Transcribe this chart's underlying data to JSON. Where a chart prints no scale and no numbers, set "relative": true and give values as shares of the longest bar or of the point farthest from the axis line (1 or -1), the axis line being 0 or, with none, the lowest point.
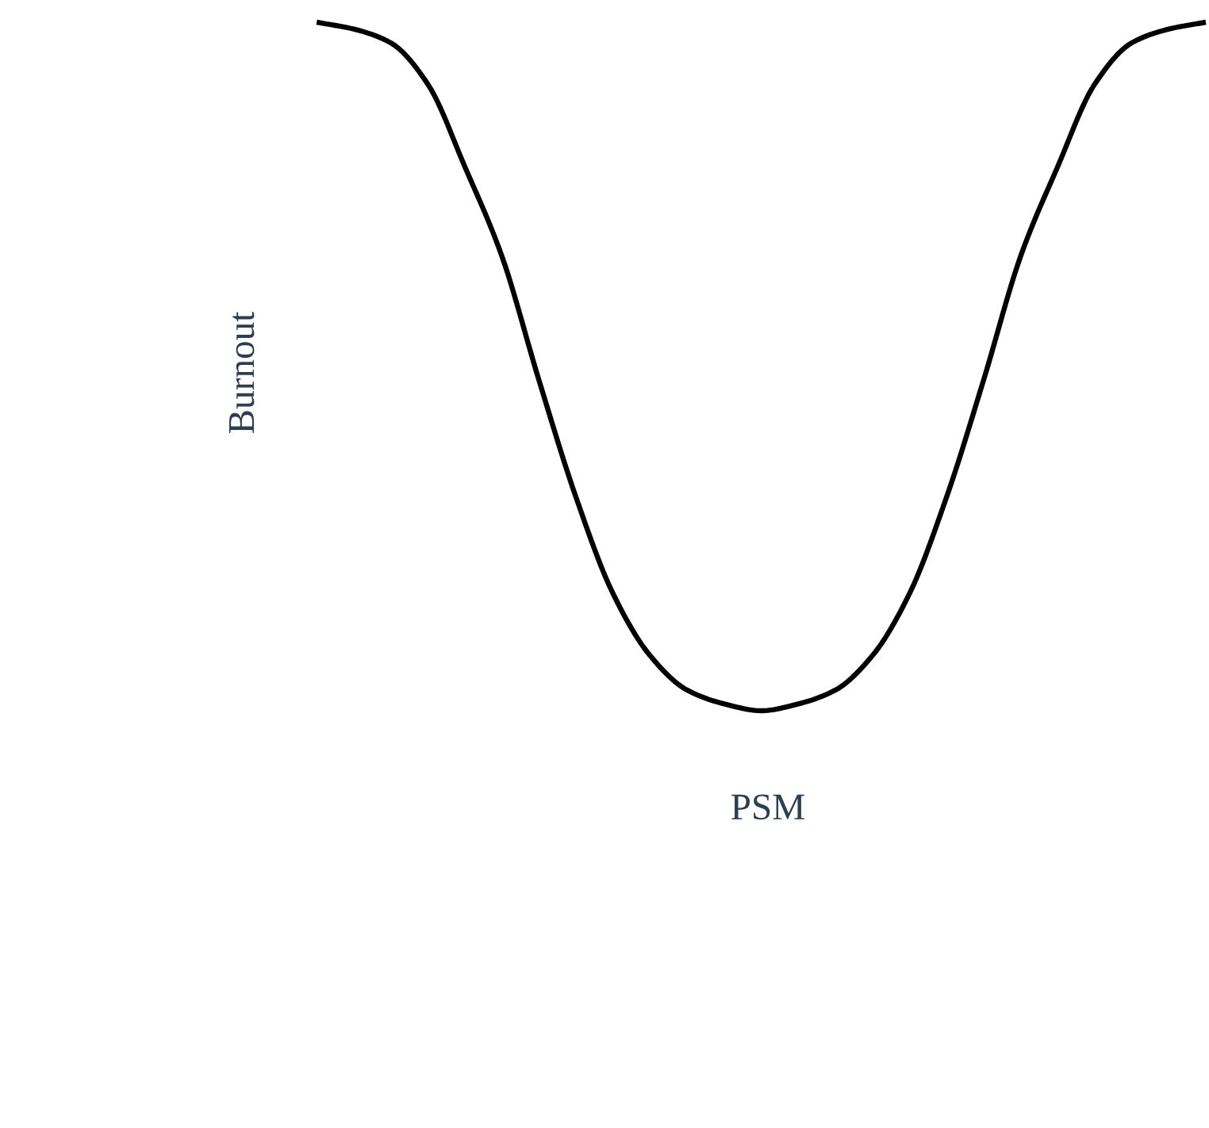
{
  "chart_data": {
    "type": "line",
    "relative": true,
    "xlabel": "PSM",
    "ylabel": "Burnout",
    "categories": [
      null,
      null,
      null,
      null,
      null,
      null,
      null,
      null,
      null,
      null,
      null,
      null,
      null,
      null,
      null,
      null,
      null,
      null,
      null,
      null,
      null,
      null,
      null,
      null,
      null
    ],
    "series": [
      {
        "color": "#000000",
        "values": [
          1,
          0.99,
          0.97,
          0.91,
          0.79,
          0.66,
          0.48,
          0.31,
          0.17,
          0.08,
          0.03,
          0.01,
          0,
          0.01,
          0.03,
          0.08,
          0.17,
          0.31,
          0.48,
          0.66,
          0.79,
          0.91,
          0.97,
          0.99,
          1
        ]
      }
    ],
    "marker": "none",
    "line_style": "solid",
    "grid": false,
    "legend": false
  }
}
